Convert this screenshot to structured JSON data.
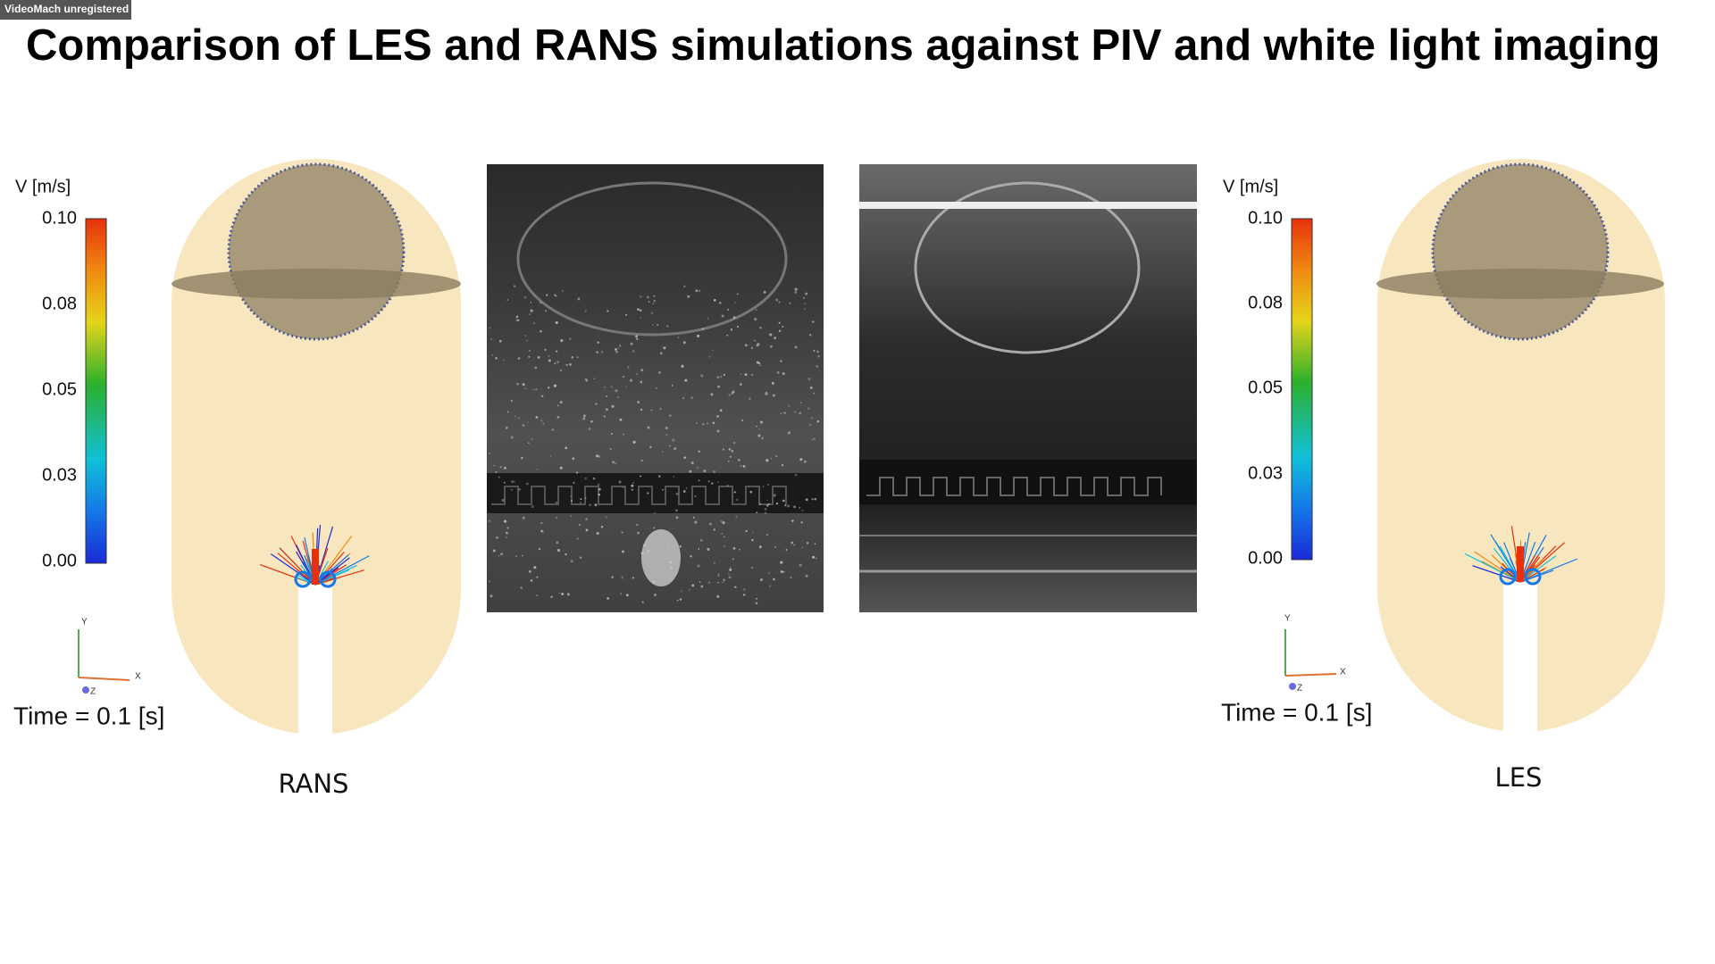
{
  "watermark": "VideoMach unregistered",
  "title": "Comparison of LES and RANS simulations against PIV and white light imaging",
  "rans": {
    "colorbar": {
      "label": "V [m/s]",
      "ticks": [
        "0.10",
        "0.08",
        "0.05",
        "0.03",
        "0.00"
      ]
    },
    "axes": {
      "y": "Y",
      "x": "X",
      "z": "Z"
    },
    "time": "Time = 0.1 [s]",
    "caption": "RANS"
  },
  "les": {
    "colorbar": {
      "label": "V [m/s]",
      "ticks": [
        "0.10",
        "0.08",
        "0.05",
        "0.03",
        "0.00"
      ]
    },
    "axes": {
      "y": "Y",
      "x": "X",
      "z": "Z"
    },
    "time": "Time = 0.1 [s]",
    "caption": "LES"
  }
}
